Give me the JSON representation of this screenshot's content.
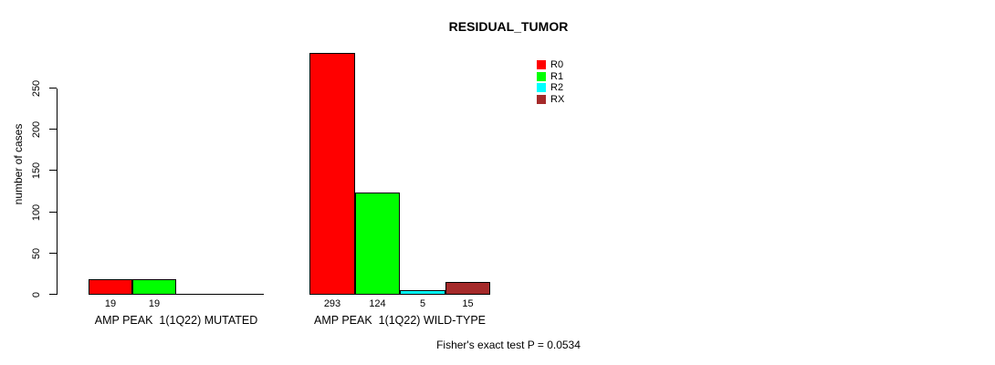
{
  "chart_data": {
    "type": "bar",
    "title": "RESIDUAL_TUMOR",
    "ylabel": "number of cases",
    "xlabel": "",
    "ylim": [
      0,
      250
    ],
    "yticks": [
      0,
      50,
      100,
      150,
      200,
      250
    ],
    "grid": false,
    "legend_position": "top-right",
    "categories": [
      "AMP PEAK  1(1Q22) MUTATED",
      "AMP PEAK  1(1Q22) WILD-TYPE"
    ],
    "series": [
      {
        "name": "R0",
        "color": "#ff0000",
        "values": [
          19,
          293
        ]
      },
      {
        "name": "R1",
        "color": "#00ff00",
        "values": [
          19,
          124
        ]
      },
      {
        "name": "R2",
        "color": "#00ffff",
        "values": [
          0,
          5
        ]
      },
      {
        "name": "RX",
        "color": "#a52a2a",
        "values": [
          0,
          15
        ]
      }
    ],
    "bar_value_labels": [
      [
        "19",
        "19",
        null,
        null
      ],
      [
        "293",
        "124",
        "5",
        "15"
      ]
    ],
    "annotation": "Fisher's exact test P = 0.0534"
  }
}
